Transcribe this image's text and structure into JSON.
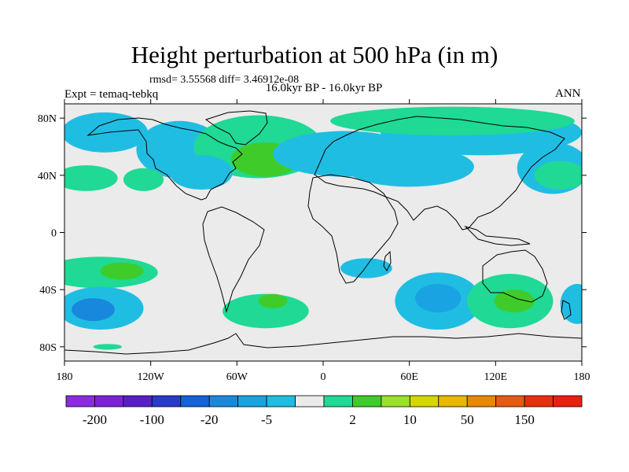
{
  "title": "Height perturbation at 500 hPa (in m)",
  "stats": "rmsd= 3.55568 diff= 3.46912e-08",
  "experiment": "Expt = temaq-tebkq",
  "subtitle": "16.0kyr BP - 16.0kyr BP",
  "season": "ANN",
  "colors": {
    "bins": [
      "#8a2be2",
      "#7a22d8",
      "#5a1ec8",
      "#2a3acb",
      "#1262d8",
      "#1888dd",
      "#1aa3e3",
      "#20bde2",
      "#ebebeb",
      "#1fd994",
      "#3fcc2a",
      "#9ae22a",
      "#d4d800",
      "#e7b800",
      "#e98800",
      "#e65a12",
      "#e5300e",
      "#e8200e"
    ],
    "land_outline": "#000000",
    "background_field": "#ebebeb"
  },
  "chart_data": {
    "type": "heatmap",
    "projection": "cylindrical-equidistant",
    "title": "Height perturbation at 500 hPa (in m)",
    "xlabel": "",
    "ylabel": "",
    "xlim": [
      -180,
      180
    ],
    "ylim": [
      -90,
      90
    ],
    "x_ticks": [
      -180,
      -120,
      -60,
      0,
      60,
      120,
      180
    ],
    "x_tick_labels": [
      "180",
      "120W",
      "60W",
      "0",
      "60E",
      "120E",
      "180"
    ],
    "y_ticks": [
      80,
      40,
      0,
      -40,
      -80
    ],
    "y_tick_labels": [
      "80N",
      "40N",
      "0",
      "40S",
      "80S"
    ],
    "colorbar": {
      "labeled_levels": [
        "-200",
        "-100",
        "-20",
        "-5",
        "2",
        "10",
        "50",
        "150"
      ],
      "n_bins": 18
    },
    "anomaly_blobs": [
      {
        "lon": -152,
        "lat": 70,
        "rx": 30,
        "ry": 14,
        "level": 7
      },
      {
        "lon": -100,
        "lat": 58,
        "rx": 30,
        "ry": 20,
        "level": 7
      },
      {
        "lon": -165,
        "lat": 38,
        "rx": 22,
        "ry": 9,
        "level": 9
      },
      {
        "lon": -125,
        "lat": 37,
        "rx": 14,
        "ry": 8,
        "level": 9
      },
      {
        "lon": -45,
        "lat": 60,
        "rx": 45,
        "ry": 22,
        "level": 9
      },
      {
        "lon": -40,
        "lat": 51,
        "rx": 24,
        "ry": 12,
        "level": 10
      },
      {
        "lon": -85,
        "lat": 42,
        "rx": 22,
        "ry": 12,
        "level": 7
      },
      {
        "lon": 15,
        "lat": 55,
        "rx": 50,
        "ry": 16,
        "level": 7
      },
      {
        "lon": 110,
        "lat": 70,
        "rx": 70,
        "ry": 16,
        "level": 7
      },
      {
        "lon": 60,
        "lat": 46,
        "rx": 45,
        "ry": 14,
        "level": 7
      },
      {
        "lon": 90,
        "lat": 78,
        "rx": 85,
        "ry": 10,
        "level": 9
      },
      {
        "lon": 160,
        "lat": 45,
        "rx": 25,
        "ry": 18,
        "level": 7
      },
      {
        "lon": 165,
        "lat": 40,
        "rx": 18,
        "ry": 10,
        "level": 9
      },
      {
        "lon": -155,
        "lat": -28,
        "rx": 40,
        "ry": 11,
        "level": 9
      },
      {
        "lon": -140,
        "lat": -27,
        "rx": 15,
        "ry": 6,
        "level": 10
      },
      {
        "lon": -155,
        "lat": -53,
        "rx": 30,
        "ry": 15,
        "level": 7
      },
      {
        "lon": -160,
        "lat": -54,
        "rx": 15,
        "ry": 8,
        "level": 5
      },
      {
        "lon": -40,
        "lat": -55,
        "rx": 30,
        "ry": 12,
        "level": 9
      },
      {
        "lon": -35,
        "lat": -48,
        "rx": 10,
        "ry": 5,
        "level": 10
      },
      {
        "lon": 30,
        "lat": -25,
        "rx": 18,
        "ry": 7,
        "level": 7
      },
      {
        "lon": 80,
        "lat": -48,
        "rx": 30,
        "ry": 20,
        "level": 7
      },
      {
        "lon": 80,
        "lat": -46,
        "rx": 16,
        "ry": 10,
        "level": 6
      },
      {
        "lon": 130,
        "lat": -48,
        "rx": 30,
        "ry": 19,
        "level": 9
      },
      {
        "lon": 133,
        "lat": -48,
        "rx": 14,
        "ry": 8,
        "level": 10
      },
      {
        "lon": 177,
        "lat": -50,
        "rx": 12,
        "ry": 14,
        "level": 7
      },
      {
        "lon": -150,
        "lat": -80,
        "rx": 10,
        "ry": 2,
        "level": 9
      }
    ]
  }
}
